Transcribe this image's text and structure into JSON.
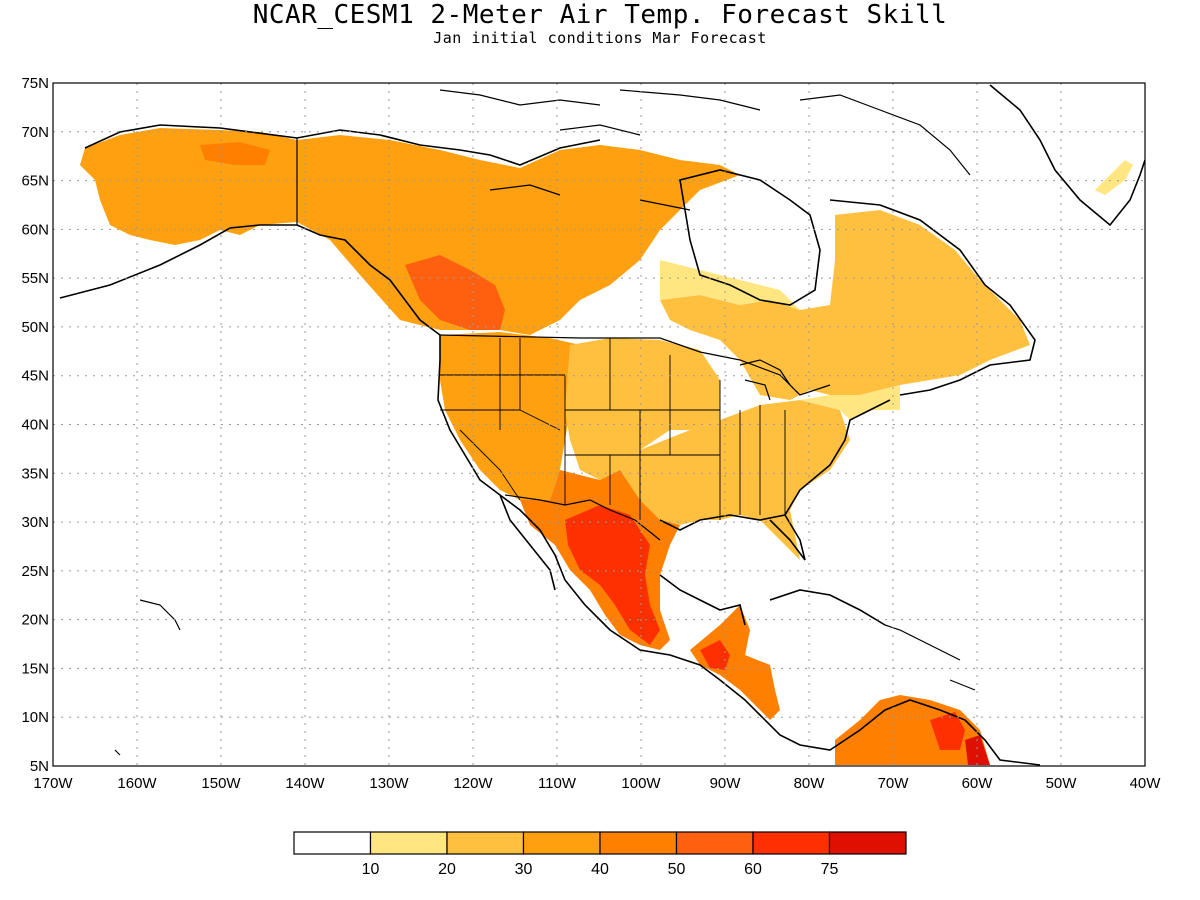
{
  "title": "NCAR_CESM1 2-Meter Air Temp. Forecast Skill",
  "subtitle": "Jan initial conditions   Mar Forecast",
  "map": {
    "lon_range": [
      -170,
      -40
    ],
    "lat_range": [
      5,
      75
    ],
    "lat_ticks": [
      "75N",
      "70N",
      "65N",
      "60N",
      "55N",
      "50N",
      "45N",
      "40N",
      "35N",
      "30N",
      "25N",
      "20N",
      "15N",
      "10N",
      "5N"
    ],
    "lon_ticks": [
      "170W",
      "160W",
      "150W",
      "140W",
      "130W",
      "120W",
      "110W",
      "100W",
      "90W",
      "80W",
      "70W",
      "60W",
      "50W",
      "40W"
    ],
    "grid": "dotted"
  },
  "colorbar": {
    "colors": [
      "#ffffff",
      "#ffe680",
      "#ffc040",
      "#ffa010",
      "#ff8000",
      "#ff6010",
      "#ff3000",
      "#e01000",
      "#a00000"
    ],
    "labels": [
      "10",
      "20",
      "30",
      "40",
      "50",
      "60",
      "75"
    ]
  },
  "regions": [
    {
      "name": "alaska",
      "level": 3
    },
    {
      "name": "alaska-high",
      "level": 4
    },
    {
      "name": "nw-canada",
      "level": 3
    },
    {
      "name": "bc-core",
      "level": 5
    },
    {
      "name": "east-canada",
      "level": 2
    },
    {
      "name": "hudson-east",
      "level": 1
    },
    {
      "name": "western-us",
      "level": 3
    },
    {
      "name": "central-us",
      "level": 2
    },
    {
      "name": "southeast-us",
      "level": 2
    },
    {
      "name": "northeast-us",
      "level": 1
    },
    {
      "name": "mexico",
      "level": 4
    },
    {
      "name": "mexico-core",
      "level": 6
    },
    {
      "name": "central-america",
      "level": 4
    },
    {
      "name": "central-america-core",
      "level": 6
    },
    {
      "name": "south-america",
      "level": 4
    },
    {
      "name": "venezuela-core",
      "level": 6
    },
    {
      "name": "guyana-core",
      "level": 7
    },
    {
      "name": "greenland-patch",
      "level": 1
    }
  ]
}
